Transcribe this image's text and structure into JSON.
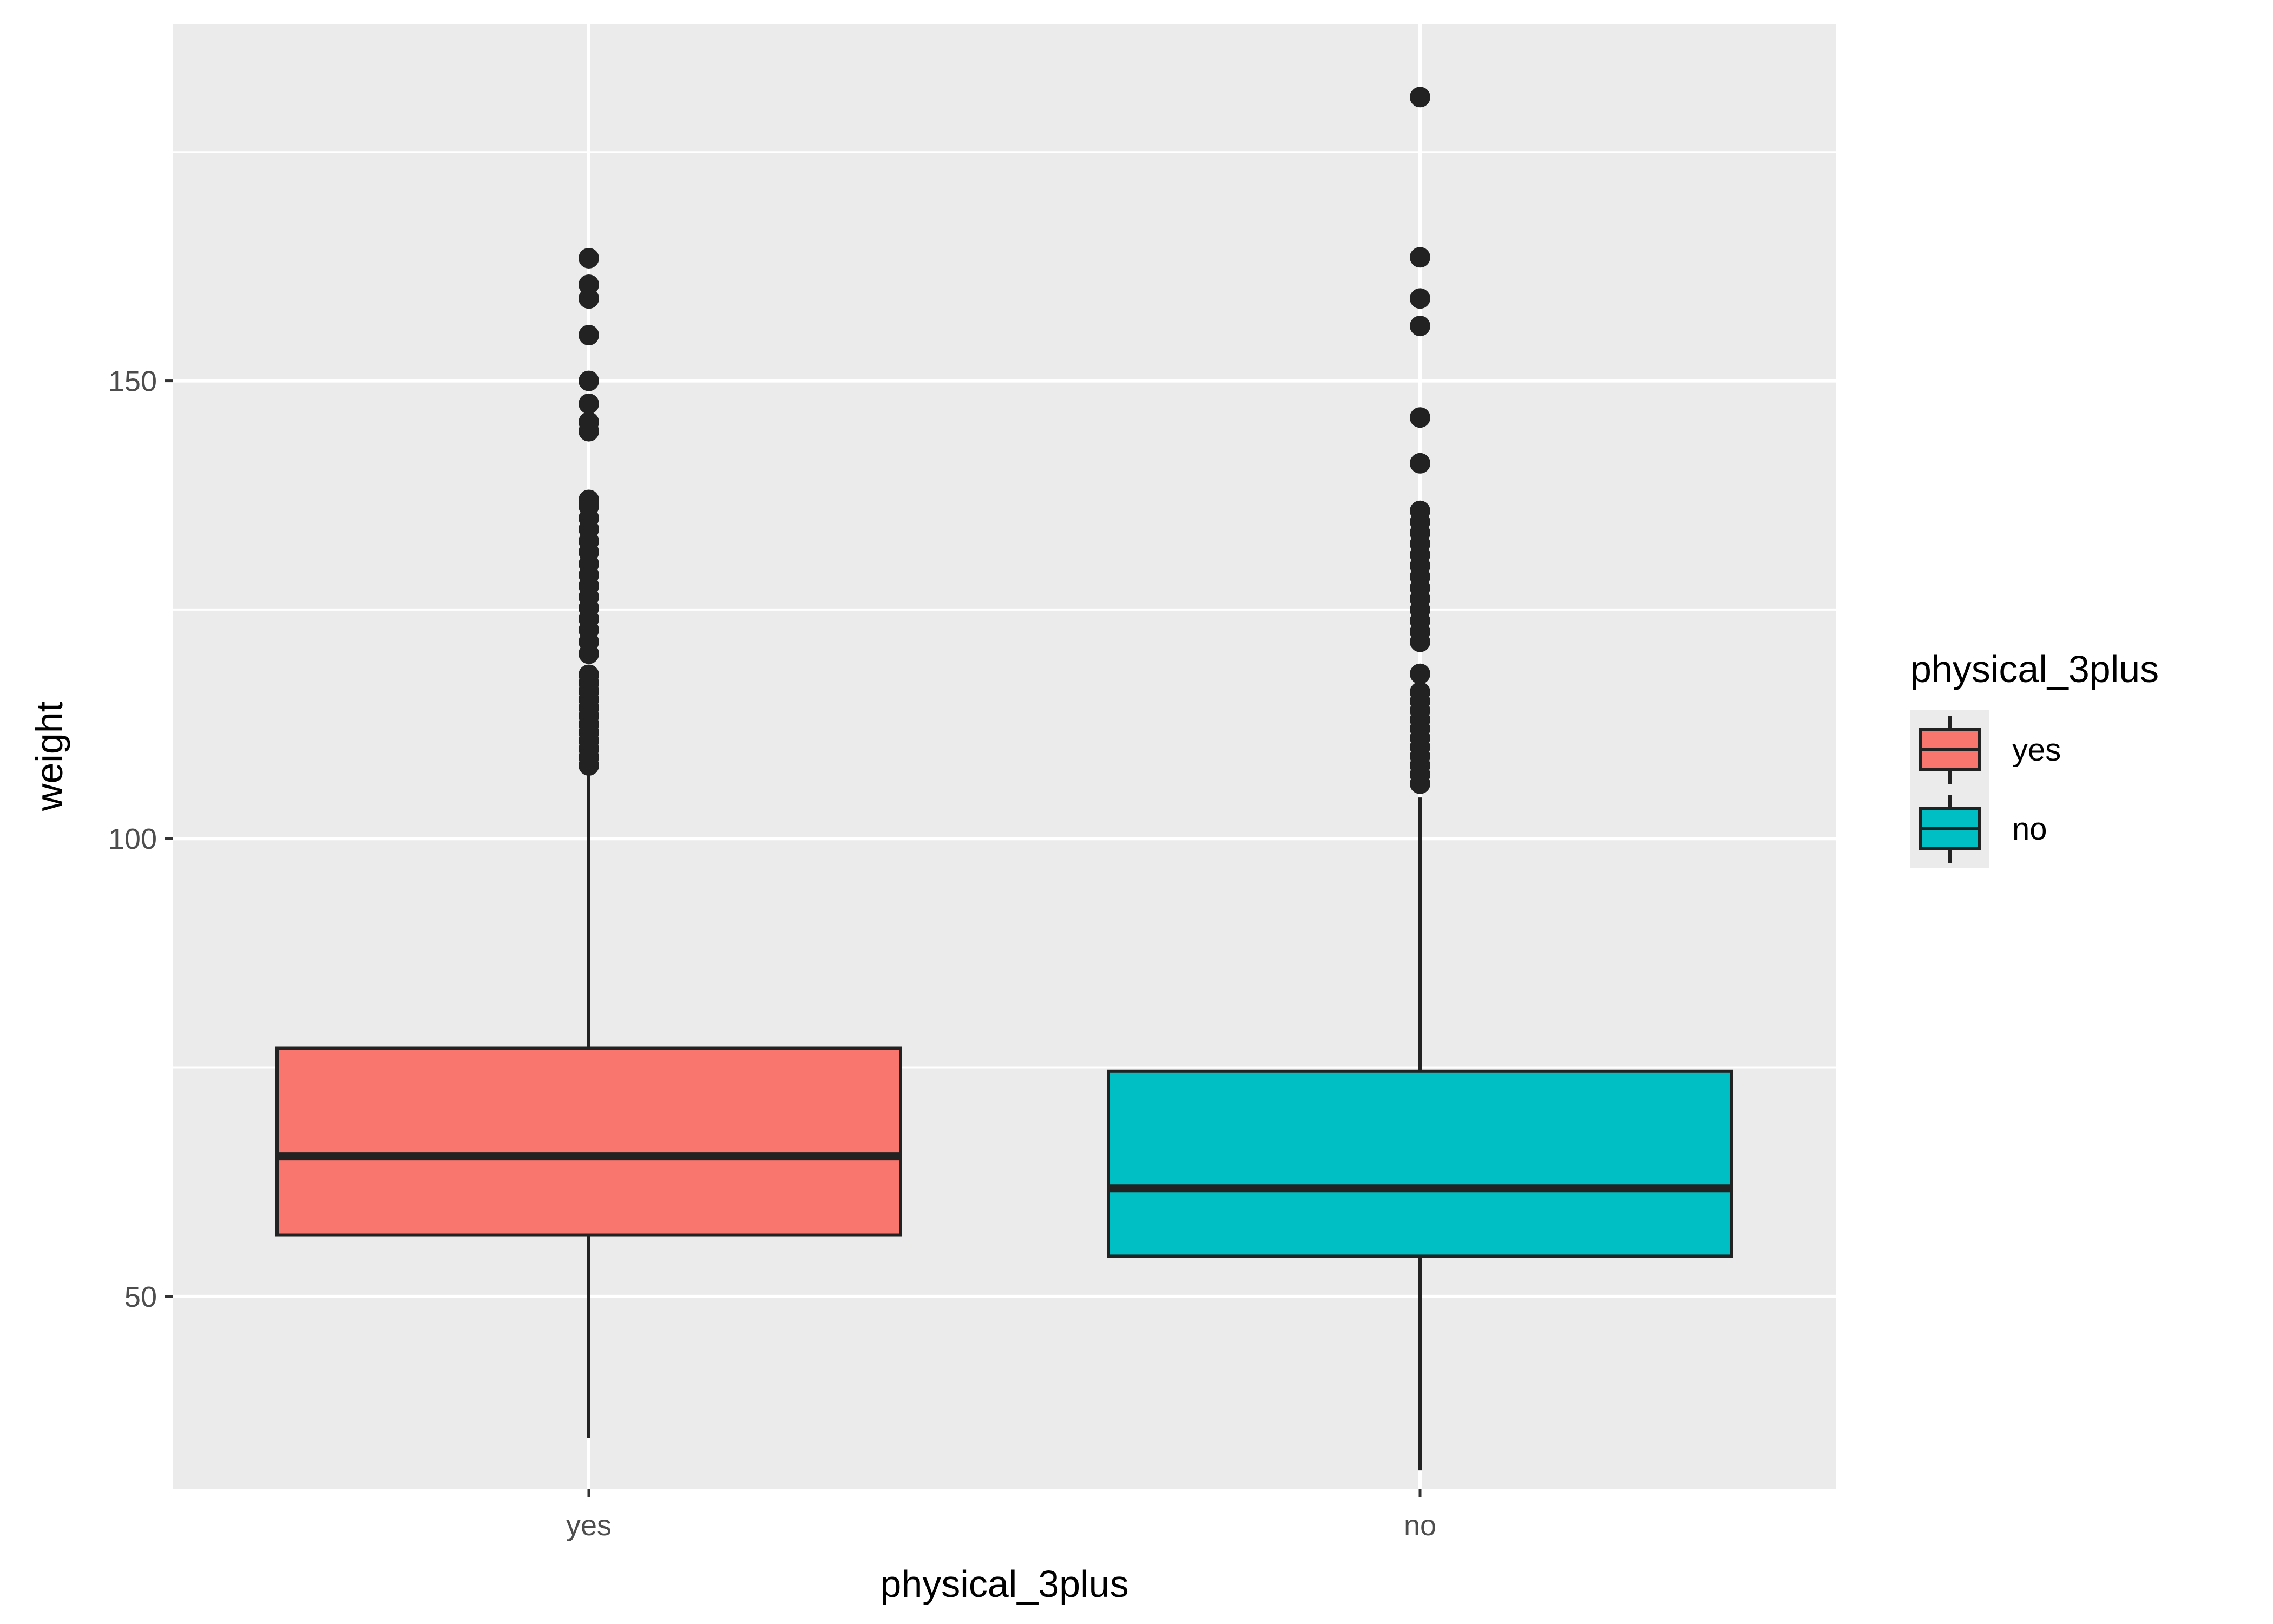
{
  "chart_data": {
    "type": "box",
    "xlabel": "physical_3plus",
    "ylabel": "weight",
    "categories": [
      "yes",
      "no"
    ],
    "ylim": [
      29.0,
      189.0
    ],
    "yticks": [
      50,
      100,
      150
    ],
    "grid": true,
    "legend": {
      "title": "physical_3plus",
      "position": "right",
      "entries": [
        {
          "label": "yes",
          "color": "#F8766D"
        },
        {
          "label": "no",
          "color": "#00BFC4"
        }
      ]
    },
    "series": [
      {
        "name": "yes",
        "color": "#F8766D",
        "min": 34.5,
        "q1": 56.7,
        "median": 65.3,
        "q3": 77.1,
        "max": 107.5,
        "outliers": [
          108.0,
          108.9,
          109.8,
          110.7,
          111.6,
          112.5,
          113.4,
          114.3,
          115.2,
          116.1,
          117.0,
          117.9,
          120.2,
          121.5,
          122.8,
          124.0,
          125.2,
          126.4,
          127.6,
          128.8,
          130.0,
          131.3,
          132.5,
          133.8,
          135.0,
          136.3,
          137.0,
          144.5,
          145.5,
          147.5,
          150.0,
          155.0,
          159.0,
          160.5,
          163.4
        ]
      },
      {
        "name": "no",
        "color": "#00BFC4",
        "min": 31.0,
        "q1": 54.4,
        "median": 61.8,
        "q3": 74.6,
        "max": 104.5,
        "outliers": [
          106.0,
          107.0,
          108.0,
          109.0,
          110.0,
          111.0,
          112.0,
          113.0,
          114.0,
          115.0,
          116.0,
          118.0,
          121.5,
          122.6,
          123.8,
          125.0,
          126.2,
          127.4,
          128.6,
          129.8,
          131.0,
          132.2,
          133.4,
          134.6,
          135.8,
          141.0,
          146.0,
          156.0,
          159.0,
          163.5,
          181.0
        ]
      }
    ]
  }
}
